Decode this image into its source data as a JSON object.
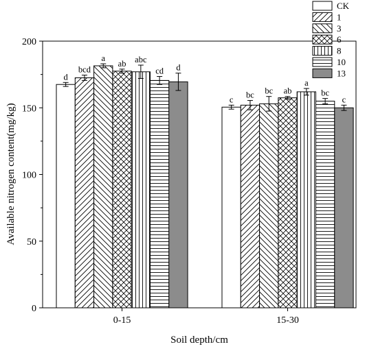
{
  "chart_data": {
    "type": "bar",
    "xlabel": "Soil depth/cm",
    "ylabel": "Available nitrogen content(mg/kg)",
    "ylim": [
      0,
      200
    ],
    "yticks": [
      0,
      50,
      100,
      150,
      200
    ],
    "grid": false,
    "legend_position": "top-right",
    "categories": [
      "0-15",
      "15-30"
    ],
    "series": [
      {
        "name": "CK",
        "pattern": "none",
        "values": [
          167.5,
          150.5
        ],
        "errors": [
          1.5,
          1.5
        ],
        "labels": [
          "d",
          "c"
        ]
      },
      {
        "name": "1",
        "pattern": "diag-right",
        "values": [
          172.5,
          152.0
        ],
        "errors": [
          2.0,
          3.5
        ],
        "labels": [
          "bcd",
          "bc"
        ]
      },
      {
        "name": "3",
        "pattern": "diag-left",
        "values": [
          181.5,
          153.0
        ],
        "errors": [
          1.5,
          5.5
        ],
        "labels": [
          "a",
          "bc"
        ]
      },
      {
        "name": "6",
        "pattern": "crosshatch",
        "values": [
          177.5,
          157.5
        ],
        "errors": [
          1.5,
          1.0
        ],
        "labels": [
          "ab",
          "ab"
        ]
      },
      {
        "name": "8",
        "pattern": "vertical",
        "values": [
          177.0,
          162.0
        ],
        "errors": [
          5.0,
          2.5
        ],
        "labels": [
          "abc",
          "a"
        ]
      },
      {
        "name": "10",
        "pattern": "horizontal",
        "values": [
          170.5,
          155.0
        ],
        "errors": [
          3.0,
          2.0
        ],
        "labels": [
          "cd",
          "bc"
        ]
      },
      {
        "name": "13",
        "pattern": "solid-gray",
        "values": [
          169.5,
          150.0
        ],
        "errors": [
          6.5,
          2.0
        ],
        "labels": [
          "d",
          "c"
        ]
      }
    ]
  }
}
